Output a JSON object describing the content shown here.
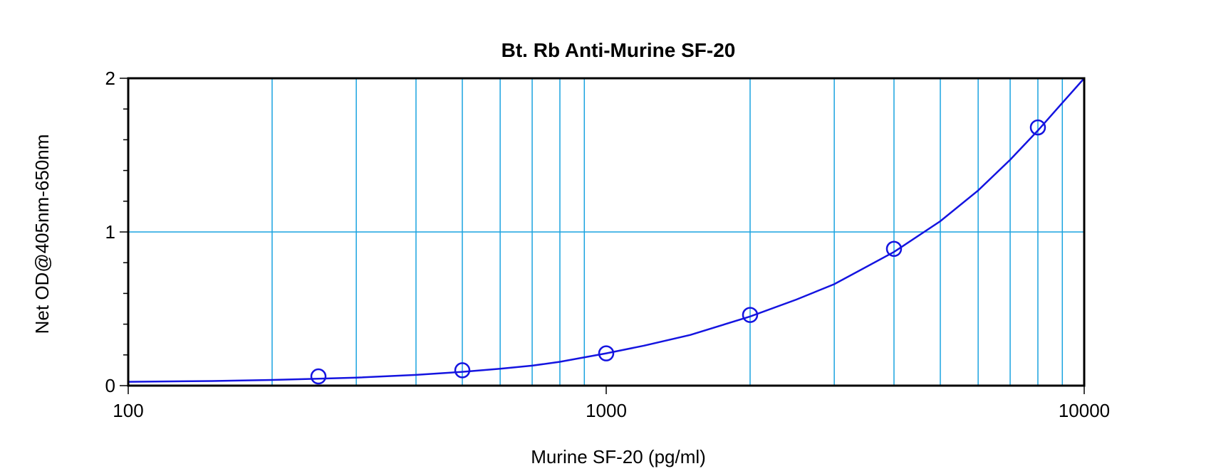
{
  "chart_data": {
    "type": "scatter",
    "title": "Bt. Rb Anti-Murine SF-20",
    "xlabel": "Murine SF-20 (pg/ml)",
    "ylabel": "Net OD@405nm-650nm",
    "x_scale": "log",
    "xlim": [
      100,
      10000
    ],
    "ylim": [
      0,
      2
    ],
    "x_tick_labels": [
      "100",
      "1000",
      "10000"
    ],
    "y_tick_labels": [
      "0",
      "1",
      "2"
    ],
    "grid": true,
    "series": [
      {
        "marker": "open-circle",
        "x": [
          250,
          500,
          1000,
          2000,
          4000,
          8000
        ],
        "y": [
          0.06,
          0.1,
          0.21,
          0.46,
          0.89,
          1.68
        ]
      }
    ],
    "fit_curve": {
      "x": [
        100,
        150,
        200,
        250,
        300,
        400,
        500,
        600,
        700,
        800,
        1000,
        1200,
        1500,
        2000,
        2500,
        3000,
        4000,
        5000,
        6000,
        7000,
        8000,
        9000,
        10000
      ],
      "y": [
        0.025,
        0.03,
        0.037,
        0.045,
        0.052,
        0.07,
        0.09,
        0.11,
        0.13,
        0.155,
        0.21,
        0.26,
        0.33,
        0.45,
        0.56,
        0.66,
        0.87,
        1.07,
        1.27,
        1.47,
        1.66,
        1.84,
        2.0
      ]
    },
    "colors": {
      "gridline": "#1aa3e0",
      "series": "#1414e0",
      "axis": "#000000"
    }
  }
}
